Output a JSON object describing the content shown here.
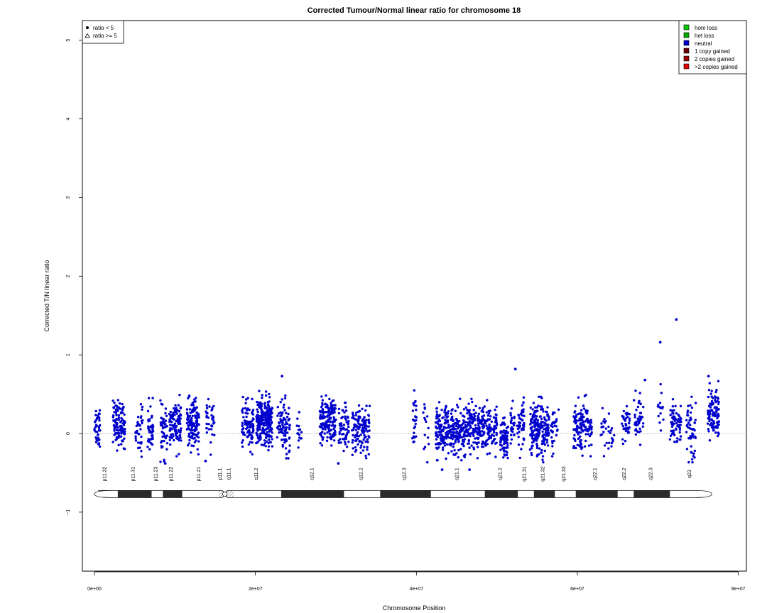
{
  "chart_data": {
    "type": "scatter",
    "title": "Corrected Tumour/Normal linear ratio for chromosome  18",
    "xlabel": "Chromosome Position",
    "ylabel": "Corrected T/N linear ratio",
    "xlim": [
      -1500000,
      81000000
    ],
    "ylim": [
      -1.75,
      5.25
    ],
    "x_ticks": [
      0,
      20000000,
      40000000,
      60000000,
      80000000
    ],
    "x_tick_labels": [
      "0e+00",
      "2e+07",
      "4e+07",
      "6e+07",
      "8e+07"
    ],
    "y_ticks": [
      -1,
      0,
      1,
      2,
      3,
      4,
      5
    ],
    "y_tick_labels": [
      "−1",
      "0",
      "1",
      "2",
      "3",
      "4",
      "5"
    ],
    "reference_line": 0,
    "point_color": "#0000cc",
    "shape_legend": {
      "placement": "top-left",
      "entries": [
        {
          "marker": "filled-circle",
          "label": "ratio < 5"
        },
        {
          "marker": "open-triangle",
          "label": "ratio >= 5"
        }
      ]
    },
    "state_legend": {
      "placement": "top-right",
      "entries": [
        {
          "label": "hom loss",
          "color": "#00cc00"
        },
        {
          "label": "het loss",
          "color": "#00aa00"
        },
        {
          "label": "neutral",
          "color": "#0000cc"
        },
        {
          "label": "1 copy gained",
          "color": "#660000"
        },
        {
          "label": "2 copies gained",
          "color": "#990000"
        },
        {
          "label": ">2 copies gained",
          "color": "#dd0000"
        }
      ]
    },
    "clusters": [
      {
        "x0": 0,
        "x1": 700000,
        "mean": 0.1,
        "sd": 0.15,
        "n": 40
      },
      {
        "x0": 2300000,
        "x1": 3800000,
        "mean": 0.12,
        "sd": 0.14,
        "n": 110
      },
      {
        "x0": 5100000,
        "x1": 6000000,
        "mean": 0.05,
        "sd": 0.15,
        "n": 35
      },
      {
        "x0": 6600000,
        "x1": 7300000,
        "mean": 0.06,
        "sd": 0.15,
        "n": 45
      },
      {
        "x0": 8200000,
        "x1": 9100000,
        "mean": 0.03,
        "sd": 0.15,
        "n": 45
      },
      {
        "x0": 9300000,
        "x1": 10800000,
        "mean": 0.1,
        "sd": 0.15,
        "n": 100
      },
      {
        "x0": 11500000,
        "x1": 13000000,
        "mean": 0.12,
        "sd": 0.15,
        "n": 130
      },
      {
        "x0": 13800000,
        "x1": 14900000,
        "mean": 0.12,
        "sd": 0.15,
        "n": 35
      },
      {
        "x0": 18300000,
        "x1": 19800000,
        "mean": 0.1,
        "sd": 0.14,
        "n": 90
      },
      {
        "x0": 20100000,
        "x1": 22100000,
        "mean": 0.15,
        "sd": 0.15,
        "n": 240
      },
      {
        "x0": 22700000,
        "x1": 24300000,
        "mean": 0.1,
        "sd": 0.16,
        "n": 90
      },
      {
        "x0": 25100000,
        "x1": 25800000,
        "mean": 0.05,
        "sd": 0.12,
        "n": 15
      },
      {
        "x0": 28000000,
        "x1": 30000000,
        "mean": 0.15,
        "sd": 0.15,
        "n": 170
      },
      {
        "x0": 30300000,
        "x1": 31600000,
        "mean": 0.05,
        "sd": 0.15,
        "n": 60
      },
      {
        "x0": 32000000,
        "x1": 34200000,
        "mean": 0.05,
        "sd": 0.14,
        "n": 130
      },
      {
        "x0": 39500000,
        "x1": 40000000,
        "mean": 0.1,
        "sd": 0.2,
        "n": 25
      },
      {
        "x0": 40800000,
        "x1": 41600000,
        "mean": 0.05,
        "sd": 0.16,
        "n": 15
      },
      {
        "x0": 42400000,
        "x1": 47400000,
        "mean": 0.05,
        "sd": 0.15,
        "n": 360
      },
      {
        "x0": 47500000,
        "x1": 50000000,
        "mean": 0.05,
        "sd": 0.15,
        "n": 160
      },
      {
        "x0": 50400000,
        "x1": 51400000,
        "mean": -0.08,
        "sd": 0.13,
        "n": 80
      },
      {
        "x0": 51700000,
        "x1": 52200000,
        "mean": 0.05,
        "sd": 0.15,
        "n": 25
      },
      {
        "x0": 52500000,
        "x1": 53400000,
        "mean": 0.08,
        "sd": 0.15,
        "n": 50
      },
      {
        "x0": 54100000,
        "x1": 56500000,
        "mean": 0.05,
        "sd": 0.16,
        "n": 190
      },
      {
        "x0": 56700000,
        "x1": 57700000,
        "mean": 0.1,
        "sd": 0.15,
        "n": 30
      },
      {
        "x0": 59500000,
        "x1": 61800000,
        "mean": 0.1,
        "sd": 0.15,
        "n": 130
      },
      {
        "x0": 62900000,
        "x1": 64600000,
        "mean": 0.05,
        "sd": 0.13,
        "n": 30
      },
      {
        "x0": 65500000,
        "x1": 66700000,
        "mean": 0.15,
        "sd": 0.15,
        "n": 40
      },
      {
        "x0": 67000000,
        "x1": 68200000,
        "mean": 0.18,
        "sd": 0.14,
        "n": 45
      },
      {
        "x0": 70000000,
        "x1": 70700000,
        "mean": 0.35,
        "sd": 0.15,
        "n": 15
      },
      {
        "x0": 71500000,
        "x1": 72900000,
        "mean": 0.12,
        "sd": 0.15,
        "n": 70
      },
      {
        "x0": 73500000,
        "x1": 74700000,
        "mean": 0.05,
        "sd": 0.16,
        "n": 50
      },
      {
        "x0": 76200000,
        "x1": 77600000,
        "mean": 0.25,
        "sd": 0.16,
        "n": 110
      }
    ],
    "outliers": [
      {
        "x": 72300000,
        "y": 1.45
      },
      {
        "x": 70300000,
        "y": 1.16
      },
      {
        "x": 23300000,
        "y": 0.73
      },
      {
        "x": 52300000,
        "y": 0.82
      },
      {
        "x": 76300000,
        "y": 0.73
      },
      {
        "x": 68400000,
        "y": 0.68
      },
      {
        "x": 30300000,
        "y": -0.38
      },
      {
        "x": 43200000,
        "y": -0.46
      },
      {
        "x": 46600000,
        "y": -0.46
      },
      {
        "x": 8800000,
        "y": -0.38
      },
      {
        "x": 13800000,
        "y": -0.35
      }
    ],
    "ideogram": {
      "y": -0.77,
      "length_bp": 76700000,
      "centromere_bp": 16200000,
      "bands": [
        {
          "name": "p11.32",
          "start": 0,
          "end": 2900000,
          "stain": "white",
          "label_x": 1450000
        },
        {
          "name": "p11.31",
          "start": 2900000,
          "end": 7100000,
          "stain": "black",
          "label_x": 5000000
        },
        {
          "name": "p11.23",
          "start": 7100000,
          "end": 8500000,
          "stain": "white",
          "label_x": 7800000
        },
        {
          "name": "p11.22",
          "start": 8500000,
          "end": 10900000,
          "stain": "black",
          "label_x": 9700000
        },
        {
          "name": "p11.21",
          "start": 10900000,
          "end": 15400000,
          "stain": "white",
          "label_x": 13150000
        },
        {
          "name": "p11.1",
          "start": 15400000,
          "end": 16100000,
          "stain": "hatch",
          "label_x": 15800000
        },
        {
          "name": "q11.1",
          "start": 16300000,
          "end": 17300000,
          "stain": "hatch",
          "label_x": 16900000
        },
        {
          "name": "q11.2",
          "start": 17300000,
          "end": 23200000,
          "stain": "white",
          "label_x": 20300000
        },
        {
          "name": "q12.1",
          "start": 23200000,
          "end": 31000000,
          "stain": "black",
          "label_x": 27200000
        },
        {
          "name": "q12.2",
          "start": 31000000,
          "end": 35500000,
          "stain": "white",
          "label_x": 33300000
        },
        {
          "name": "q12.3",
          "start": 35500000,
          "end": 41800000,
          "stain": "black",
          "label_x": 38700000
        },
        {
          "name": "q21.1",
          "start": 41800000,
          "end": 48500000,
          "stain": "white",
          "label_x": 45200000
        },
        {
          "name": "q21.2",
          "start": 48500000,
          "end": 52600000,
          "stain": "black",
          "label_x": 50600000
        },
        {
          "name": "q21.31",
          "start": 52600000,
          "end": 54600000,
          "stain": "white",
          "label_x": 53600000
        },
        {
          "name": "q21.32",
          "start": 54600000,
          "end": 57200000,
          "stain": "black",
          "label_x": 55900000
        },
        {
          "name": "q21.33",
          "start": 57200000,
          "end": 59800000,
          "stain": "white",
          "label_x": 58500000
        },
        {
          "name": "q22.1",
          "start": 59800000,
          "end": 65000000,
          "stain": "black",
          "label_x": 62400000
        },
        {
          "name": "q22.2",
          "start": 65000000,
          "end": 67000000,
          "stain": "white",
          "label_x": 66000000
        },
        {
          "name": "q22.3",
          "start": 67000000,
          "end": 71500000,
          "stain": "black",
          "label_x": 69300000
        },
        {
          "name": "q23",
          "start": 71500000,
          "end": 76700000,
          "stain": "white",
          "label_x": 74100000
        }
      ]
    }
  }
}
